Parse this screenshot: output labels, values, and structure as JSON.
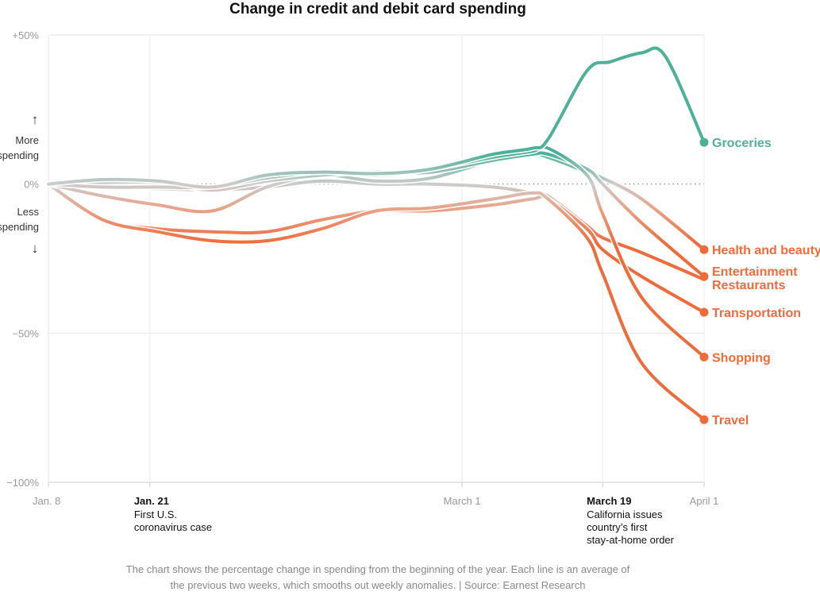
{
  "chart_data": {
    "type": "line",
    "title": "Change in credit and debit card spending",
    "xlabel": "",
    "ylabel": "",
    "ylim": [
      -100,
      50
    ],
    "xlim": [
      "2020-01-08",
      "2020-04-01"
    ],
    "y_ticks": [
      {
        "value": 50,
        "label": "+50%"
      },
      {
        "value": 0,
        "label": "0%"
      },
      {
        "value": -50,
        "label": "−50%"
      },
      {
        "value": -100,
        "label": "−100%"
      }
    ],
    "x_ticks": [
      {
        "date": "2020-01-08",
        "label": "Jan. 8",
        "bold": false
      },
      {
        "date": "2020-01-21",
        "label": "Jan. 21",
        "bold": true
      },
      {
        "date": "2020-03-01",
        "label": "March 1",
        "bold": false
      },
      {
        "date": "2020-03-19",
        "label": "March 19",
        "bold": true
      },
      {
        "date": "2020-04-01",
        "label": "April 1",
        "bold": false
      }
    ],
    "annotations": [
      {
        "date": "2020-01-21",
        "lines": [
          "First U.S.",
          "coronavirus case"
        ]
      },
      {
        "date": "2020-03-19",
        "lines": [
          "California issues",
          "country’s first",
          "stay-at-home order"
        ]
      }
    ],
    "y_axis_notes": {
      "up_arrow": "↑",
      "more": [
        "More",
        "spending"
      ],
      "less": [
        "Less",
        "spending"
      ],
      "down_arrow": "↓"
    },
    "grid": true,
    "colors": {
      "positive": "#4fb09a",
      "negative": "#ee6b3c",
      "neutral": "#cccccc"
    },
    "series": [
      {
        "name": "Groceries",
        "points": [
          [
            "2020-01-08",
            0
          ],
          [
            "2020-01-15",
            1.5
          ],
          [
            "2020-01-22",
            1
          ],
          [
            "2020-01-29",
            -1
          ],
          [
            "2020-02-05",
            3
          ],
          [
            "2020-02-12",
            4
          ],
          [
            "2020-02-19",
            3.5
          ],
          [
            "2020-02-26",
            5
          ],
          [
            "2020-03-05",
            10
          ],
          [
            "2020-03-10",
            12
          ],
          [
            "2020-03-12",
            15
          ],
          [
            "2020-03-17",
            38
          ],
          [
            "2020-03-20",
            41
          ],
          [
            "2020-03-24",
            44
          ],
          [
            "2020-03-27",
            43
          ],
          [
            "2020-04-01",
            14
          ]
        ]
      },
      {
        "name": "Health and beauty",
        "points": [
          [
            "2020-01-08",
            0
          ],
          [
            "2020-01-15",
            -4
          ],
          [
            "2020-01-22",
            -7
          ],
          [
            "2020-01-29",
            -9
          ],
          [
            "2020-02-05",
            -1
          ],
          [
            "2020-02-12",
            3
          ],
          [
            "2020-02-19",
            1
          ],
          [
            "2020-02-26",
            2
          ],
          [
            "2020-03-05",
            8
          ],
          [
            "2020-03-10",
            10
          ],
          [
            "2020-03-12",
            9
          ],
          [
            "2020-03-17",
            4
          ],
          [
            "2020-03-19",
            2
          ],
          [
            "2020-03-24",
            -5
          ],
          [
            "2020-04-01",
            -22
          ]
        ]
      },
      {
        "name": "Entertainment",
        "points": [
          [
            "2020-01-08",
            0
          ],
          [
            "2020-01-15",
            0.5
          ],
          [
            "2020-01-22",
            0.5
          ],
          [
            "2020-01-29",
            -2
          ],
          [
            "2020-02-05",
            1
          ],
          [
            "2020-02-12",
            3
          ],
          [
            "2020-02-19",
            4
          ],
          [
            "2020-02-26",
            4
          ],
          [
            "2020-03-05",
            8
          ],
          [
            "2020-03-10",
            10
          ],
          [
            "2020-03-12",
            10
          ],
          [
            "2020-03-17",
            5
          ],
          [
            "2020-03-19",
            0
          ],
          [
            "2020-03-24",
            -13
          ],
          [
            "2020-04-01",
            -31
          ]
        ]
      },
      {
        "name": "Restaurants",
        "points": [
          [
            "2020-01-08",
            0
          ],
          [
            "2020-01-15",
            -1
          ],
          [
            "2020-01-22",
            -1.5
          ],
          [
            "2020-01-29",
            -2
          ],
          [
            "2020-02-05",
            -1
          ],
          [
            "2020-02-12",
            1
          ],
          [
            "2020-02-19",
            0
          ],
          [
            "2020-02-26",
            0
          ],
          [
            "2020-03-05",
            -1
          ],
          [
            "2020-03-10",
            -3
          ],
          [
            "2020-03-12",
            -4
          ],
          [
            "2020-03-17",
            -14
          ],
          [
            "2020-03-19",
            -18
          ],
          [
            "2020-03-24",
            -23
          ],
          [
            "2020-04-01",
            -32
          ]
        ]
      },
      {
        "name": "Transportation",
        "points": [
          [
            "2020-01-08",
            0
          ],
          [
            "2020-01-15",
            -12
          ],
          [
            "2020-01-22",
            -15
          ],
          [
            "2020-01-29",
            -16
          ],
          [
            "2020-02-05",
            -16
          ],
          [
            "2020-02-12",
            -12
          ],
          [
            "2020-02-19",
            -9
          ],
          [
            "2020-02-26",
            -9
          ],
          [
            "2020-03-05",
            -7
          ],
          [
            "2020-03-10",
            -5
          ],
          [
            "2020-03-12",
            -5
          ],
          [
            "2020-03-17",
            -15
          ],
          [
            "2020-03-19",
            -22
          ],
          [
            "2020-03-24",
            -31
          ],
          [
            "2020-04-01",
            -43
          ]
        ]
      },
      {
        "name": "Shopping",
        "points": [
          [
            "2020-01-08",
            0
          ],
          [
            "2020-01-15",
            -1
          ],
          [
            "2020-01-22",
            -1
          ],
          [
            "2020-01-29",
            -1
          ],
          [
            "2020-02-05",
            2
          ],
          [
            "2020-02-12",
            4
          ],
          [
            "2020-02-19",
            3
          ],
          [
            "2020-02-26",
            5
          ],
          [
            "2020-03-05",
            9
          ],
          [
            "2020-03-10",
            11
          ],
          [
            "2020-03-12",
            12
          ],
          [
            "2020-03-17",
            3
          ],
          [
            "2020-03-19",
            -10
          ],
          [
            "2020-03-24",
            -38
          ],
          [
            "2020-04-01",
            -58
          ]
        ]
      },
      {
        "name": "Travel",
        "points": [
          [
            "2020-01-08",
            0
          ],
          [
            "2020-01-15",
            -12
          ],
          [
            "2020-01-22",
            -16
          ],
          [
            "2020-01-29",
            -19
          ],
          [
            "2020-02-05",
            -19
          ],
          [
            "2020-02-12",
            -15
          ],
          [
            "2020-02-19",
            -9
          ],
          [
            "2020-02-26",
            -8
          ],
          [
            "2020-03-05",
            -5
          ],
          [
            "2020-03-10",
            -3
          ],
          [
            "2020-03-12",
            -5
          ],
          [
            "2020-03-17",
            -18
          ],
          [
            "2020-03-19",
            -30
          ],
          [
            "2020-03-24",
            -60
          ],
          [
            "2020-04-01",
            -79
          ]
        ]
      }
    ],
    "end_labels": [
      {
        "series": "Groceries",
        "lines": [
          "Groceries"
        ],
        "color": "#4fb09a"
      },
      {
        "series": "Health and beauty",
        "lines": [
          "Health and beauty"
        ],
        "color": "#ee6b3c"
      },
      {
        "series": "Entertainment",
        "lines": [
          "Entertainment",
          "Restaurants"
        ],
        "color": "#ee6b3c"
      },
      {
        "series": "Transportation",
        "lines": [
          "Transportation"
        ],
        "color": "#ee6b3c"
      },
      {
        "series": "Shopping",
        "lines": [
          "Shopping"
        ],
        "color": "#ee6b3c"
      },
      {
        "series": "Travel",
        "lines": [
          "Travel"
        ],
        "color": "#ee6b3c"
      }
    ]
  },
  "footnote": [
    "The chart shows the percentage change in spending from the beginning of the year. Each line is an average of",
    "the previous two weeks, which smooths out weekly anomalies. | Source: Earnest Research"
  ]
}
